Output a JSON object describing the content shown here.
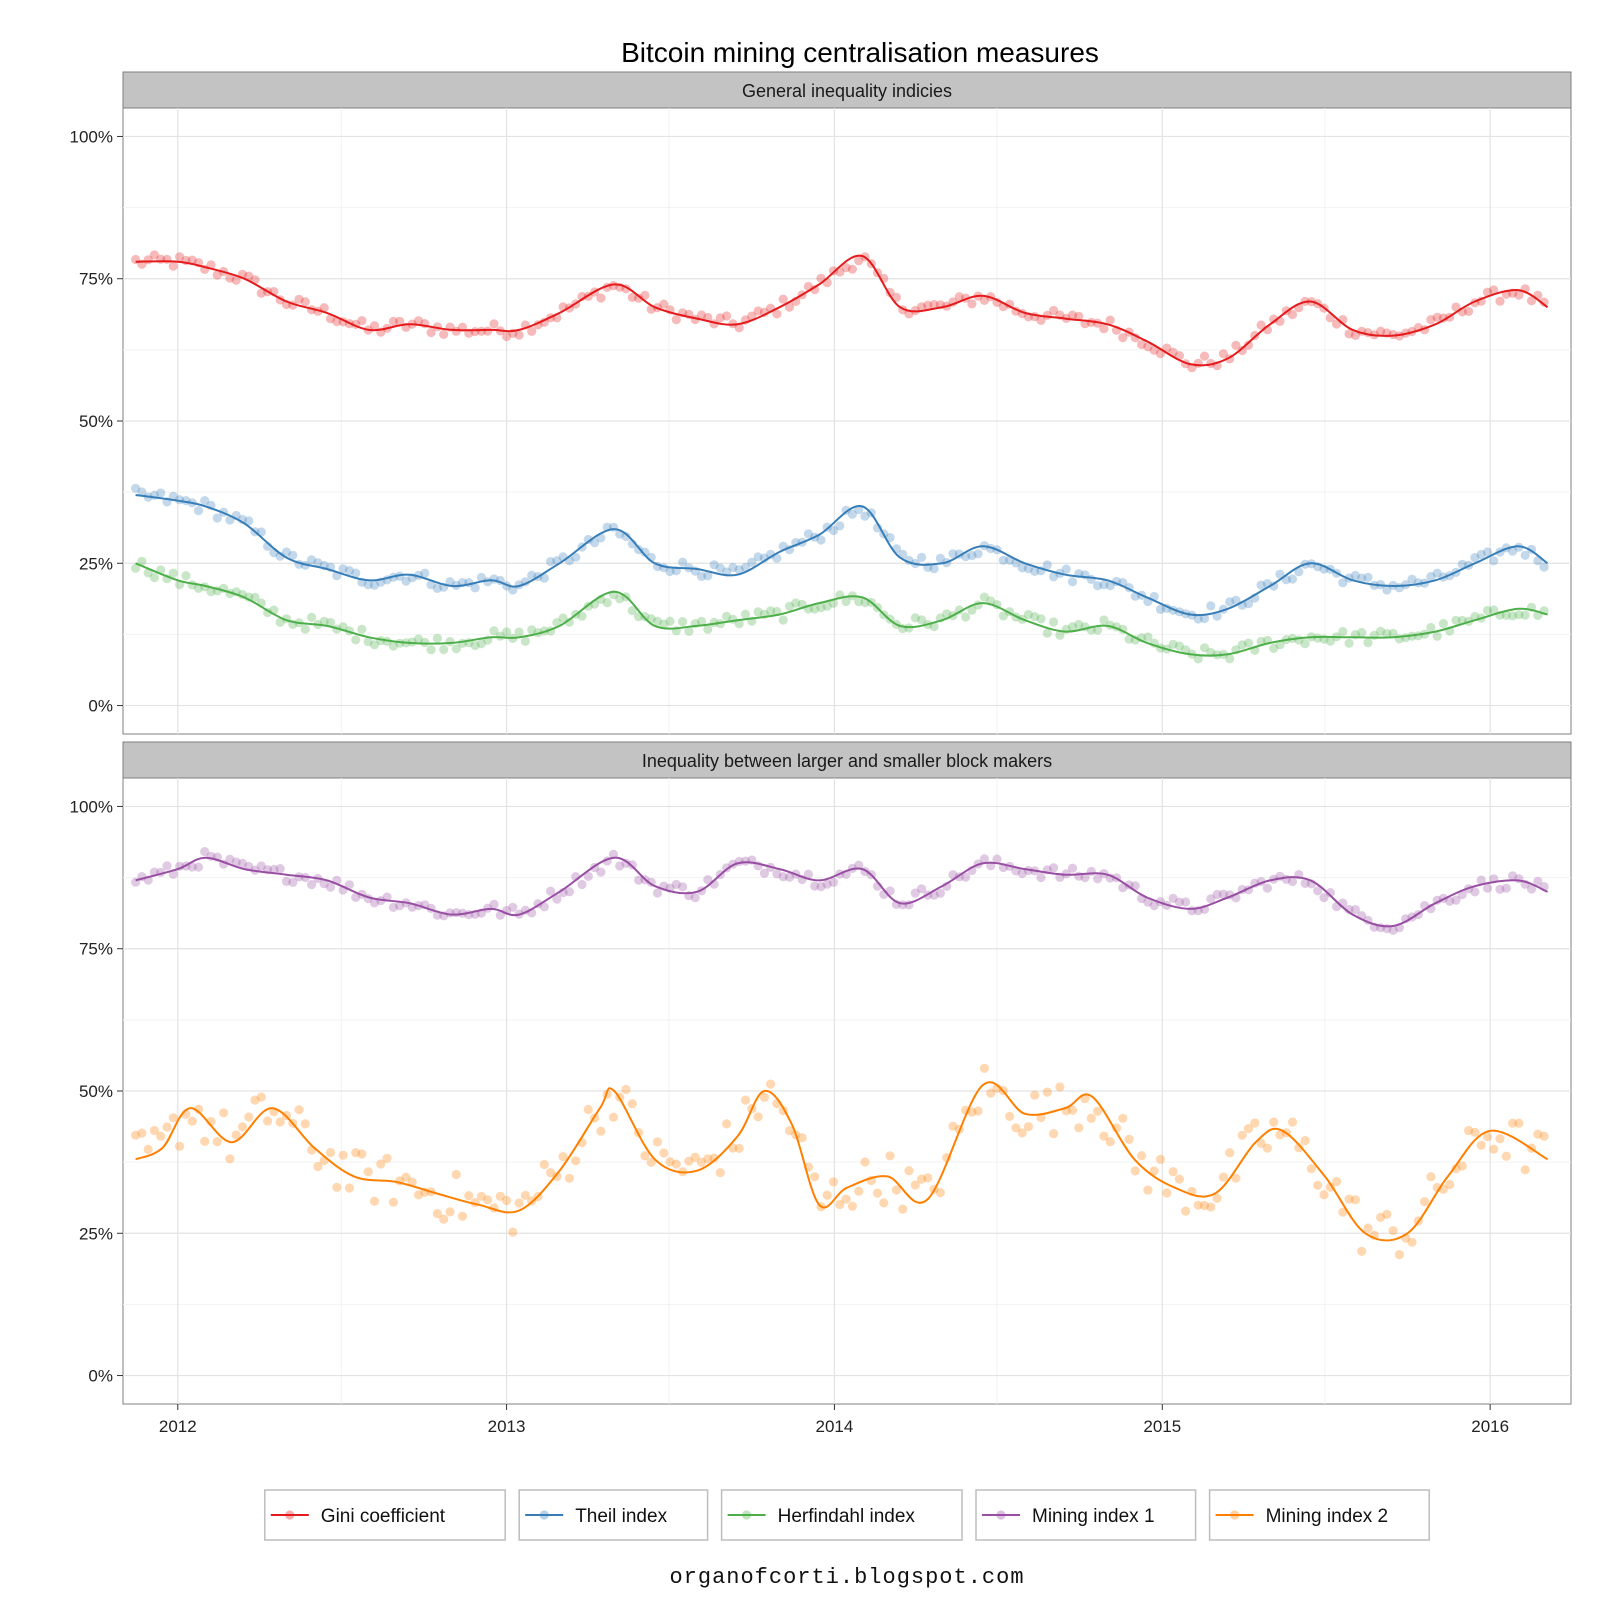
{
  "chart_data": {
    "type": "line",
    "title": "Bitcoin mining centralisation measures",
    "footer": "organofcorti.blogspot.com",
    "x_tick_labels": [
      "2012",
      "2013",
      "2014",
      "2015",
      "2016"
    ],
    "x_range": [
      "2011-11-01",
      "2016-03-31"
    ],
    "y_tick_labels": [
      "0%",
      "25%",
      "50%",
      "75%",
      "100%"
    ],
    "y_range": [
      -0.05,
      1.05
    ],
    "grid": true,
    "legend_position": "bottom",
    "panels": [
      {
        "strip": "General inequality indicies",
        "series": [
          {
            "name": "Gini coefficient",
            "color": "#E41A1C",
            "x": [
              "2011-11-15",
              "2012-01-01",
              "2012-02-01",
              "2012-03-15",
              "2012-05-01",
              "2012-06-15",
              "2012-08-01",
              "2012-09-15",
              "2012-11-01",
              "2012-12-15",
              "2013-01-15",
              "2013-03-01",
              "2013-05-01",
              "2013-06-15",
              "2013-08-01",
              "2013-09-15",
              "2013-11-01",
              "2013-12-15",
              "2014-02-01",
              "2014-03-15",
              "2014-05-01",
              "2014-06-15",
              "2014-08-01",
              "2014-09-15",
              "2014-11-01",
              "2014-12-15",
              "2015-02-01",
              "2015-03-15",
              "2015-05-01",
              "2015-06-15",
              "2015-08-01",
              "2015-09-15",
              "2015-11-01",
              "2015-12-15",
              "2016-02-01",
              "2016-03-05"
            ],
            "y": [
              0.78,
              0.78,
              0.77,
              0.75,
              0.71,
              0.69,
              0.66,
              0.67,
              0.66,
              0.66,
              0.66,
              0.69,
              0.74,
              0.7,
              0.68,
              0.67,
              0.7,
              0.74,
              0.79,
              0.7,
              0.7,
              0.72,
              0.69,
              0.68,
              0.67,
              0.64,
              0.6,
              0.61,
              0.67,
              0.71,
              0.66,
              0.65,
              0.67,
              0.71,
              0.73,
              0.7
            ]
          },
          {
            "name": "Theil index",
            "color": "#377EB8",
            "x": [
              "2011-11-15",
              "2012-01-01",
              "2012-02-01",
              "2012-03-15",
              "2012-05-01",
              "2012-06-15",
              "2012-08-01",
              "2012-09-15",
              "2012-11-01",
              "2012-12-15",
              "2013-01-15",
              "2013-03-01",
              "2013-05-01",
              "2013-06-15",
              "2013-08-01",
              "2013-09-15",
              "2013-11-01",
              "2013-12-15",
              "2014-02-01",
              "2014-03-15",
              "2014-05-01",
              "2014-06-15",
              "2014-08-01",
              "2014-09-15",
              "2014-11-01",
              "2014-12-15",
              "2015-02-01",
              "2015-03-15",
              "2015-05-01",
              "2015-06-15",
              "2015-08-01",
              "2015-09-15",
              "2015-11-01",
              "2015-12-15",
              "2016-02-01",
              "2016-03-05"
            ],
            "y": [
              0.37,
              0.36,
              0.35,
              0.32,
              0.26,
              0.24,
              0.22,
              0.23,
              0.21,
              0.22,
              0.21,
              0.25,
              0.31,
              0.25,
              0.24,
              0.23,
              0.27,
              0.3,
              0.35,
              0.26,
              0.25,
              0.28,
              0.25,
              0.23,
              0.22,
              0.19,
              0.16,
              0.17,
              0.21,
              0.25,
              0.22,
              0.21,
              0.22,
              0.25,
              0.28,
              0.25
            ]
          },
          {
            "name": "Herfindahl index",
            "color": "#4DAF4A",
            "x": [
              "2011-11-15",
              "2012-01-01",
              "2012-02-01",
              "2012-03-15",
              "2012-05-01",
              "2012-06-15",
              "2012-08-01",
              "2012-09-15",
              "2012-11-01",
              "2012-12-15",
              "2013-01-15",
              "2013-03-01",
              "2013-05-01",
              "2013-06-15",
              "2013-08-01",
              "2013-09-15",
              "2013-11-01",
              "2013-12-15",
              "2014-02-01",
              "2014-03-15",
              "2014-05-01",
              "2014-06-15",
              "2014-08-01",
              "2014-09-15",
              "2014-11-01",
              "2014-12-15",
              "2015-02-01",
              "2015-03-15",
              "2015-05-01",
              "2015-06-15",
              "2015-08-01",
              "2015-09-15",
              "2015-11-01",
              "2015-12-15",
              "2016-02-01",
              "2016-03-05"
            ],
            "y": [
              0.25,
              0.22,
              0.21,
              0.19,
              0.15,
              0.14,
              0.12,
              0.11,
              0.11,
              0.12,
              0.12,
              0.14,
              0.2,
              0.14,
              0.14,
              0.15,
              0.16,
              0.18,
              0.19,
              0.14,
              0.15,
              0.18,
              0.15,
              0.13,
              0.14,
              0.11,
              0.09,
              0.09,
              0.11,
              0.12,
              0.12,
              0.12,
              0.13,
              0.15,
              0.17,
              0.16
            ]
          }
        ]
      },
      {
        "strip": "Inequality between larger and smaller block makers",
        "series": [
          {
            "name": "Mining index 1",
            "color": "#984EA3",
            "x": [
              "2011-11-15",
              "2012-01-01",
              "2012-02-01",
              "2012-03-15",
              "2012-05-01",
              "2012-06-15",
              "2012-08-01",
              "2012-09-15",
              "2012-11-01",
              "2012-12-15",
              "2013-01-15",
              "2013-03-01",
              "2013-05-01",
              "2013-06-15",
              "2013-08-01",
              "2013-09-15",
              "2013-11-01",
              "2013-12-15",
              "2014-02-01",
              "2014-03-15",
              "2014-05-01",
              "2014-06-15",
              "2014-08-01",
              "2014-09-15",
              "2014-11-01",
              "2014-12-15",
              "2015-02-01",
              "2015-03-15",
              "2015-05-01",
              "2015-06-15",
              "2015-08-01",
              "2015-09-15",
              "2015-11-01",
              "2015-12-15",
              "2016-02-01",
              "2016-03-05"
            ],
            "y": [
              0.87,
              0.89,
              0.91,
              0.89,
              0.88,
              0.87,
              0.84,
              0.83,
              0.81,
              0.82,
              0.81,
              0.85,
              0.91,
              0.86,
              0.85,
              0.9,
              0.89,
              0.87,
              0.89,
              0.83,
              0.86,
              0.9,
              0.89,
              0.88,
              0.88,
              0.84,
              0.82,
              0.84,
              0.87,
              0.87,
              0.81,
              0.79,
              0.83,
              0.86,
              0.87,
              0.85
            ]
          },
          {
            "name": "Mining index 2",
            "color": "#FF7F00",
            "x": [
              "2011-11-15",
              "2011-12-15",
              "2012-01-15",
              "2012-03-01",
              "2012-04-15",
              "2012-06-01",
              "2012-07-15",
              "2012-09-01",
              "2012-10-15",
              "2012-12-01",
              "2013-01-15",
              "2013-03-01",
              "2013-04-15",
              "2013-05-01",
              "2013-06-15",
              "2013-08-01",
              "2013-09-15",
              "2013-10-15",
              "2013-11-15",
              "2013-12-15",
              "2014-01-15",
              "2014-03-01",
              "2014-04-15",
              "2014-06-15",
              "2014-08-01",
              "2014-09-15",
              "2014-10-15",
              "2014-12-01",
              "2015-01-15",
              "2015-03-01",
              "2015-04-15",
              "2015-05-15",
              "2015-07-01",
              "2015-08-15",
              "2015-10-01",
              "2015-11-15",
              "2016-01-01",
              "2016-03-05"
            ],
            "y": [
              0.38,
              0.4,
              0.47,
              0.41,
              0.47,
              0.4,
              0.35,
              0.34,
              0.32,
              0.3,
              0.29,
              0.36,
              0.47,
              0.5,
              0.38,
              0.36,
              0.42,
              0.5,
              0.44,
              0.3,
              0.33,
              0.35,
              0.31,
              0.51,
              0.46,
              0.47,
              0.49,
              0.38,
              0.33,
              0.32,
              0.41,
              0.43,
              0.35,
              0.25,
              0.25,
              0.35,
              0.43,
              0.38
            ]
          }
        ]
      }
    ]
  }
}
